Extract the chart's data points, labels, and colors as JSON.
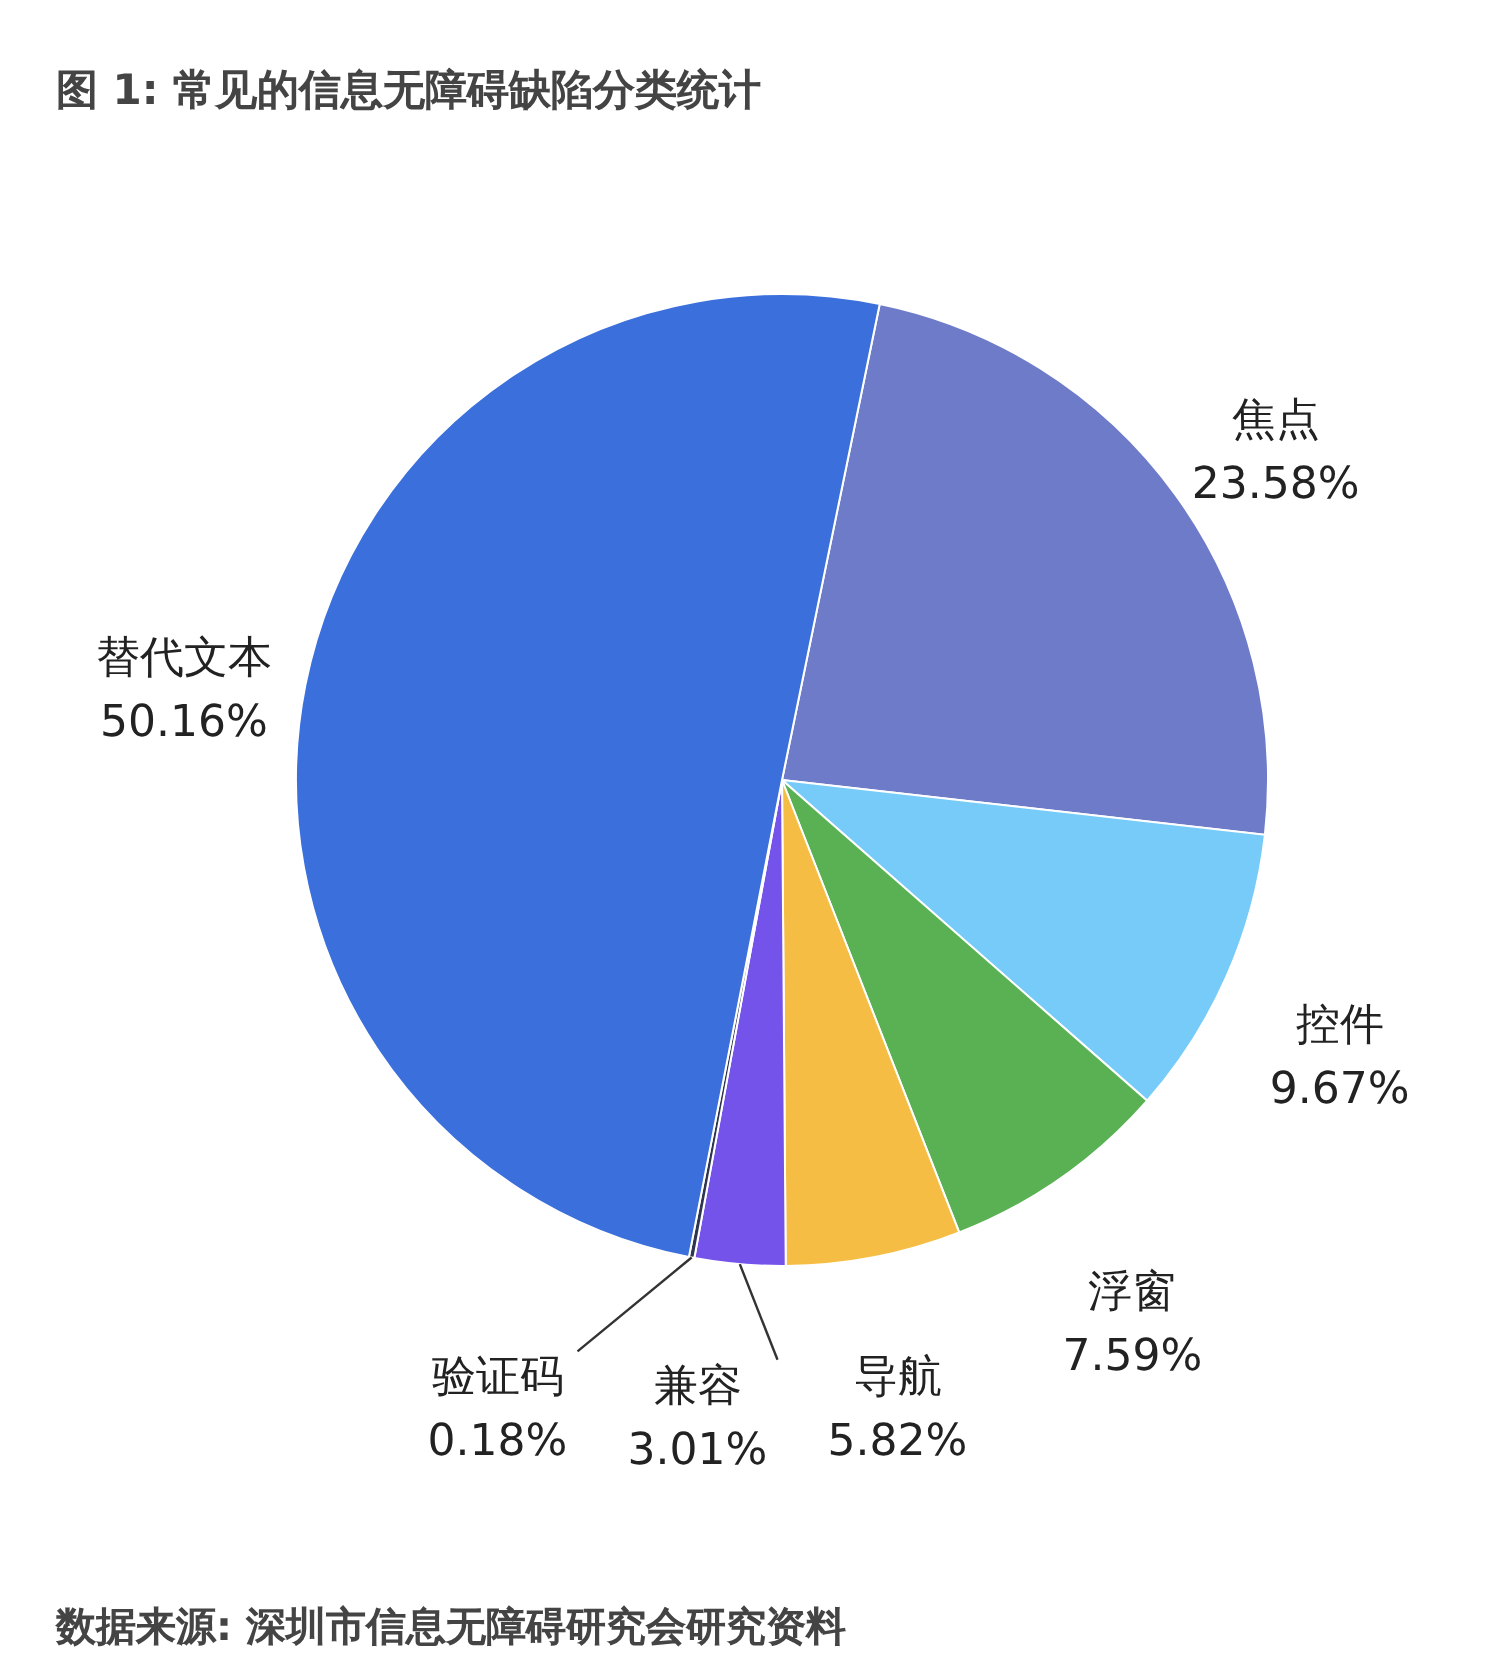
{
  "chart_data": {
    "type": "pie",
    "title": "图 1: 常见的信息无障碍缺陷分类统计",
    "categories": [
      "焦点",
      "控件",
      "浮窗",
      "导航",
      "兼容",
      "验证码",
      "替代文本"
    ],
    "values": [
      23.58,
      9.67,
      7.59,
      5.82,
      3.01,
      0.18,
      50.16
    ],
    "value_labels": [
      "23.58%",
      "9.67%",
      "7.59%",
      "5.82%",
      "3.01%",
      "0.18%",
      "50.16%"
    ],
    "colors": [
      "#6e7bc8",
      "#76cbf9",
      "#59b154",
      "#f5bd43",
      "#7453ea",
      "#2f3550",
      "#3a6fdc"
    ],
    "annotations": [
      "数据来源: 深圳市信息无障碍研究会研究资料"
    ]
  }
}
